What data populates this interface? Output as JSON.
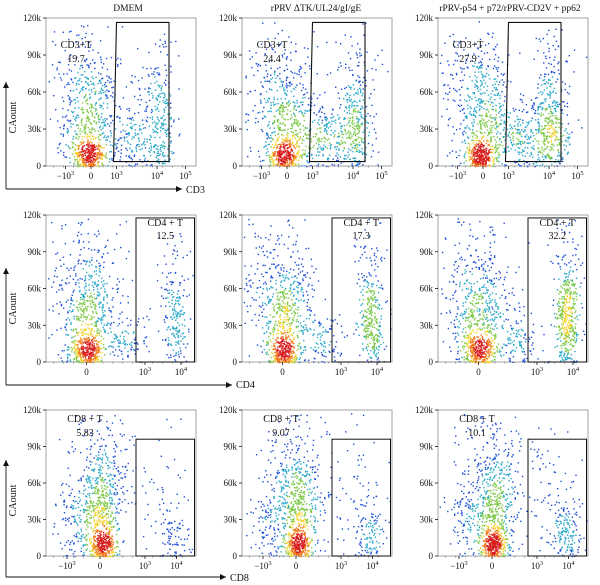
{
  "figure": {
    "column_titles": [
      "DMEM",
      "rPRV ΔTK/UL24/gI/gE",
      "rPRV-p54 + p72/rPRV-CD2V + pp62"
    ],
    "row_axis_labels": [
      {
        "x": "CD3",
        "y": "CAount"
      },
      {
        "x": "CD4",
        "y": "CAount"
      },
      {
        "x": "CD8",
        "y": "CAount"
      }
    ]
  },
  "chart_data": [
    {
      "type": "scatter",
      "panel": "DMEM",
      "row": 1,
      "col": 1,
      "xlabel": "CD3",
      "ylabel": "CAount",
      "xscale": "biexponential",
      "xticks": [
        "-10^3",
        "0",
        "10^3",
        "10^4",
        "10^5"
      ],
      "yticks": [
        "0",
        "30k",
        "60k",
        "90k",
        "120k"
      ],
      "ylim": [
        0,
        120000
      ],
      "gate": {
        "name": "CD3+T",
        "percent": "19.7"
      }
    },
    {
      "type": "scatter",
      "panel": "rPRV ΔTK/UL24/gI/gE",
      "row": 1,
      "col": 2,
      "xlabel": "",
      "ylabel": "",
      "xscale": "biexponential",
      "xticks": [
        "-10^3",
        "0",
        "10^3",
        "10^4",
        "10^5"
      ],
      "yticks": [
        "0",
        "30k",
        "60k",
        "90k",
        "120k"
      ],
      "ylim": [
        0,
        120000
      ],
      "gate": {
        "name": "CD3+T",
        "percent": "24.4"
      }
    },
    {
      "type": "scatter",
      "panel": "rPRV-p54 + p72/rPRV-CD2V + pp62",
      "row": 1,
      "col": 3,
      "xlabel": "",
      "ylabel": "",
      "xscale": "biexponential",
      "xticks": [
        "-10^3",
        "0",
        "10^3",
        "10^4",
        "10^5"
      ],
      "yticks": [
        "0",
        "30k",
        "60k",
        "90k",
        "120k"
      ],
      "ylim": [
        0,
        120000
      ],
      "gate": {
        "name": "CD3+T",
        "percent": "27.9"
      }
    },
    {
      "type": "scatter",
      "panel": "DMEM",
      "row": 2,
      "col": 1,
      "xlabel": "CD4",
      "ylabel": "CAount",
      "xscale": "biexponential",
      "xticks": [
        "0",
        "10^3",
        "10^4"
      ],
      "yticks": [
        "0",
        "30k",
        "60k",
        "90k",
        "120k"
      ],
      "ylim": [
        0,
        120000
      ],
      "gate": {
        "name": "CD4 + T",
        "percent": "12.5"
      }
    },
    {
      "type": "scatter",
      "panel": "rPRV ΔTK/UL24/gI/gE",
      "row": 2,
      "col": 2,
      "xlabel": "",
      "ylabel": "",
      "xscale": "biexponential",
      "xticks": [
        "0",
        "10^3",
        "10^4"
      ],
      "yticks": [
        "0",
        "30k",
        "60k",
        "90k",
        "120k"
      ],
      "ylim": [
        0,
        120000
      ],
      "gate": {
        "name": "CD4 + T",
        "percent": "17.3"
      }
    },
    {
      "type": "scatter",
      "panel": "rPRV-p54 + p72/rPRV-CD2V + pp62",
      "row": 2,
      "col": 3,
      "xlabel": "",
      "ylabel": "",
      "xscale": "biexponential",
      "xticks": [
        "0",
        "10^3",
        "10^4"
      ],
      "yticks": [
        "0",
        "30k",
        "60k",
        "90k",
        "120k"
      ],
      "ylim": [
        0,
        120000
      ],
      "gate": {
        "name": "CD4 + T",
        "percent": "32.2"
      }
    },
    {
      "type": "scatter",
      "panel": "DMEM",
      "row": 3,
      "col": 1,
      "xlabel": "CD8",
      "ylabel": "CAount",
      "xscale": "biexponential",
      "xticks": [
        "-10^3",
        "0",
        "10^3",
        "10^4"
      ],
      "yticks": [
        "0",
        "30k",
        "60k",
        "90k",
        "120k"
      ],
      "ylim": [
        0,
        120000
      ],
      "gate": {
        "name": "CD8 + T",
        "percent": "5.83"
      }
    },
    {
      "type": "scatter",
      "panel": "rPRV ΔTK/UL24/gI/gE",
      "row": 3,
      "col": 2,
      "xlabel": "",
      "ylabel": "",
      "xscale": "biexponential",
      "xticks": [
        "-10^3",
        "0",
        "10^3",
        "10^4"
      ],
      "yticks": [
        "0",
        "30k",
        "60k",
        "90k",
        "120k"
      ],
      "ylim": [
        0,
        120000
      ],
      "gate": {
        "name": "CD8 + T",
        "percent": "9.07"
      }
    },
    {
      "type": "scatter",
      "panel": "rPRV-p54 + p72/rPRV-CD2V + pp62",
      "row": 3,
      "col": 3,
      "xlabel": "",
      "ylabel": "",
      "xscale": "biexponential",
      "xticks": [
        "-10^3",
        "0",
        "10^3",
        "10^4"
      ],
      "yticks": [
        "0",
        "30k",
        "60k",
        "90k",
        "120k"
      ],
      "ylim": [
        0,
        120000
      ],
      "gate": {
        "name": "CD8 + T",
        "percent": "10.1"
      }
    }
  ],
  "colors": {
    "density_low": "#1f4fd6",
    "density_mid1": "#2aa9c9",
    "density_mid2": "#7fc94a",
    "density_high1": "#f2d22a",
    "density_high2": "#f07a1a",
    "density_peak": "#d81e1e"
  }
}
